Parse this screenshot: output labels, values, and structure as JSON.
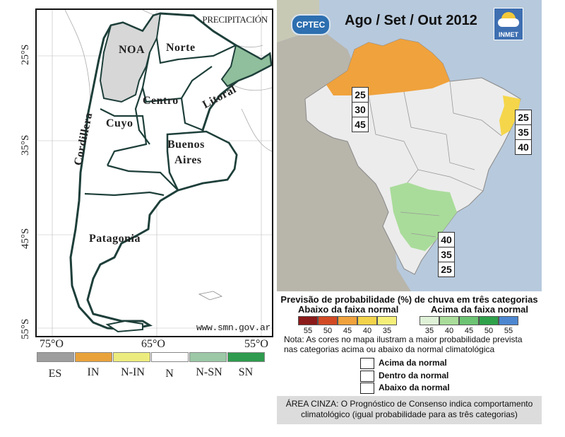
{
  "argentina": {
    "title": "PRECIPITACIÓN",
    "url": "www.smn.gov.ar",
    "lat_labels": [
      "25°S",
      "35°S",
      "45°S",
      "55°S"
    ],
    "lon_labels": [
      "75°O",
      "65°O",
      "55°O"
    ],
    "regions": {
      "noa": "NOA",
      "norte": "Norte",
      "centro": "Centro",
      "litoral": "Litoral",
      "cuyo": "Cuyo",
      "buenos_aires_1": "Buenos",
      "buenos_aires_2": "Aires",
      "patagonia": "Patagonia",
      "cordillera": "Cordillera"
    },
    "legend": [
      {
        "label": "ES",
        "color": "#9e9e9e"
      },
      {
        "label": "IN",
        "color": "#e9a23a"
      },
      {
        "label": "N-IN",
        "color": "#ecec7e"
      },
      {
        "label": "N",
        "color": "#ffffff"
      },
      {
        "label": "N-SN",
        "color": "#9cc8a6"
      },
      {
        "label": "SN",
        "color": "#2e9b4e"
      }
    ],
    "region_colors": {
      "gray": "#d7d7d7",
      "litoral_green": "#8fbf9c",
      "white": "#ffffff"
    }
  },
  "brazil": {
    "title": "Ago / Set / Out 2012",
    "logo_left": "CPTEC",
    "logo_right": "INMET",
    "prob_north": [
      "25",
      "30",
      "45"
    ],
    "prob_northeast": [
      "25",
      "35",
      "40"
    ],
    "prob_south": [
      "40",
      "35",
      "25"
    ],
    "colors": {
      "orange": "#f0a23c",
      "yellow": "#f5d64a",
      "green": "#a9dc9a",
      "land": "#ececec",
      "ocean": "#b7c9dc"
    },
    "legend": {
      "title": "Previsão de probabilidade (%) de chuva em três categorias",
      "below_label": "Abaixo da faixa normal",
      "above_label": "Acima da faixa normal",
      "below_scale": [
        {
          "value": "55",
          "color": "#8b1a1a"
        },
        {
          "value": "50",
          "color": "#d24a24"
        },
        {
          "value": "45",
          "color": "#f0a23c"
        },
        {
          "value": "40",
          "color": "#f3d34a"
        },
        {
          "value": "35",
          "color": "#f5ef7a"
        }
      ],
      "above_scale": [
        {
          "value": "35",
          "color": "#dff2d8"
        },
        {
          "value": "40",
          "color": "#a9dc9a"
        },
        {
          "value": "45",
          "color": "#6cc373"
        },
        {
          "value": "50",
          "color": "#2fa14a"
        },
        {
          "value": "55",
          "color": "#4d87d0"
        }
      ],
      "note": "Nota: As cores no mapa ilustram a maior probabilidade prevista nas categorias acima ou abaixo da normal climatológica",
      "categories": [
        "Acima da normal",
        "Dentro da normal",
        "Abaixo da normal"
      ],
      "gray_area_note": "ÁREA CINZA: O Prognóstico de Consenso indica comportamento climatológico (igual probabilidade para as três categorias)"
    }
  }
}
